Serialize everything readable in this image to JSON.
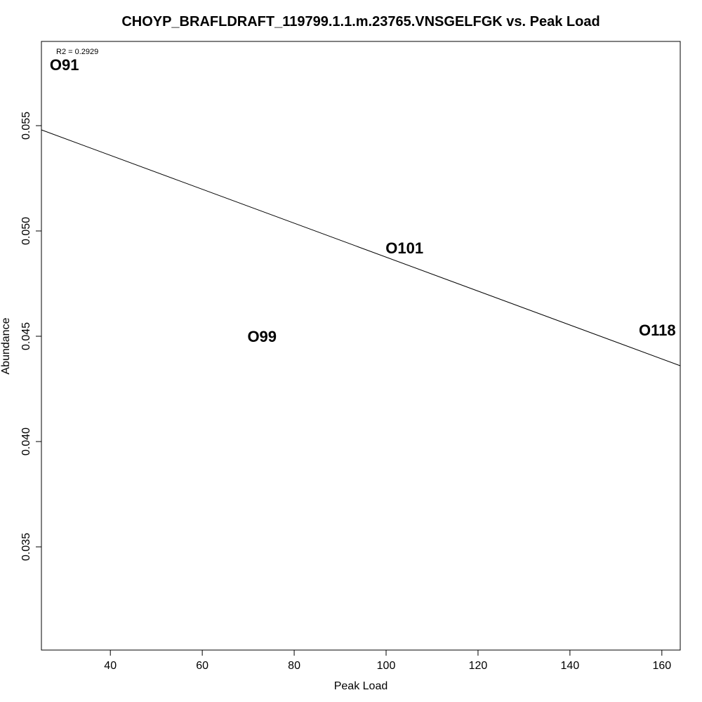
{
  "chart_data": {
    "type": "scatter",
    "title": "CHOYP_BRAFLDRAFT_119799.1.1.m.23765.VNSGELFGK vs. Peak Load",
    "xlabel": "Peak Load",
    "ylabel": "Abundance",
    "xlim": [
      25,
      164
    ],
    "ylim": [
      0.0301,
      0.059
    ],
    "xticks": [
      40,
      60,
      80,
      100,
      120,
      140,
      160
    ],
    "yticks": [
      0.035,
      0.04,
      0.045,
      0.05,
      0.055
    ],
    "ytick_labels": [
      "0.035",
      "0.040",
      "0.045",
      "0.050",
      "0.055"
    ],
    "points": [
      {
        "label": "O91",
        "x": 30,
        "y": 0.0579
      },
      {
        "label": "O101",
        "x": 104,
        "y": 0.0492
      },
      {
        "label": "O99",
        "x": 73,
        "y": 0.045
      },
      {
        "label": "O118",
        "x": 159,
        "y": 0.0453
      }
    ],
    "regression": {
      "x": [
        25,
        164
      ],
      "y": [
        0.0548,
        0.0436
      ]
    },
    "annotation": "R2 = 0.2929",
    "grid": false
  }
}
